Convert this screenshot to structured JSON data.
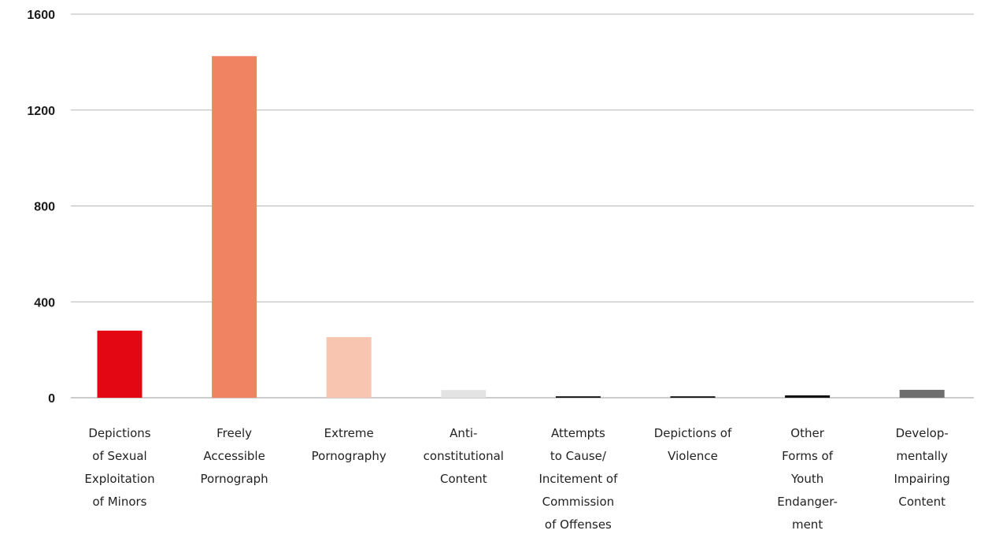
{
  "chart_data": {
    "type": "bar",
    "title": "",
    "xlabel": "",
    "ylabel": "",
    "ylim": [
      0,
      1600
    ],
    "yticks": [
      0,
      400,
      800,
      1200,
      1600
    ],
    "grid": true,
    "categories": [
      [
        "Depictions",
        "of Sexual",
        "Exploitation",
        "of Minors"
      ],
      [
        "Freely",
        "Accessible",
        "Pornograph"
      ],
      [
        "Extreme",
        "Pornography"
      ],
      [
        "Anti-",
        "constitutional",
        "Content"
      ],
      [
        "Attempts",
        "to Cause/",
        "Incitement of",
        "Commission",
        "of Offenses"
      ],
      [
        "Depictions of",
        "Violence"
      ],
      [
        "Other",
        "Forms of",
        "Youth",
        "Endanger-",
        "ment"
      ],
      [
        "Develop-",
        "mentally",
        "Impairing",
        "Content"
      ]
    ],
    "values": [
      280,
      1425,
      253,
      32,
      6,
      6,
      10,
      33
    ],
    "colors": [
      "#e30613",
      "#f08362",
      "#f8c5b0",
      "#e3e3e3",
      "#111111",
      "#111111",
      "#111111",
      "#6e6e6e"
    ]
  }
}
